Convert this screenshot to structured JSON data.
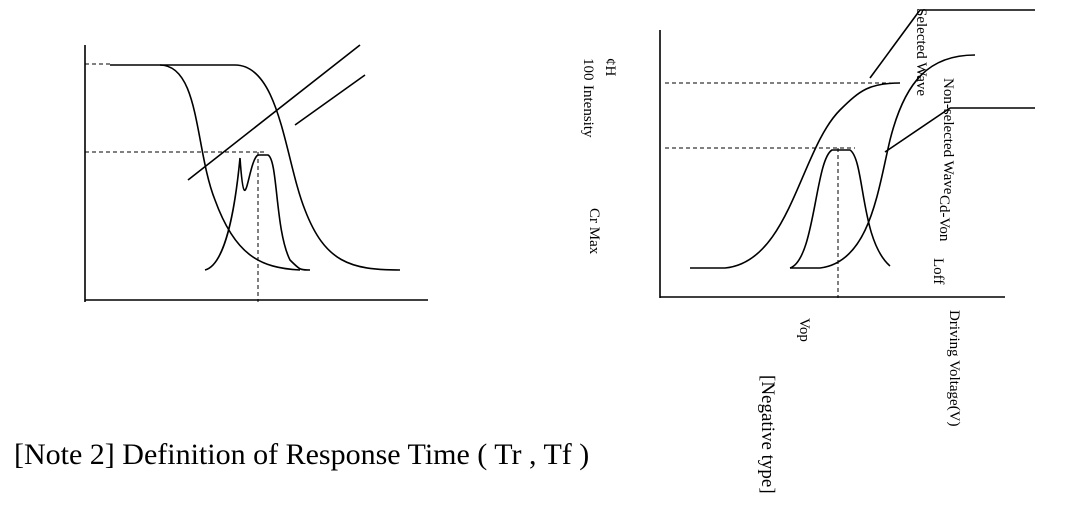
{
  "right_chart": {
    "selected_label": "Selected Wave",
    "non_selected_label": "Non-selected Wave",
    "top_symbol": "¢H",
    "top_value": "100",
    "y_axis_label": "Intensity",
    "cr_max_label": "Cr Max",
    "voff_label": "Cd-Von",
    "loff_label": "Loff",
    "vop_label": "Vop",
    "x_axis_label": "Driving Voltage(V)",
    "type_label": "[Negative type]"
  },
  "note": "[Note 2] Definition of Response Time ( Tr , Tf )"
}
